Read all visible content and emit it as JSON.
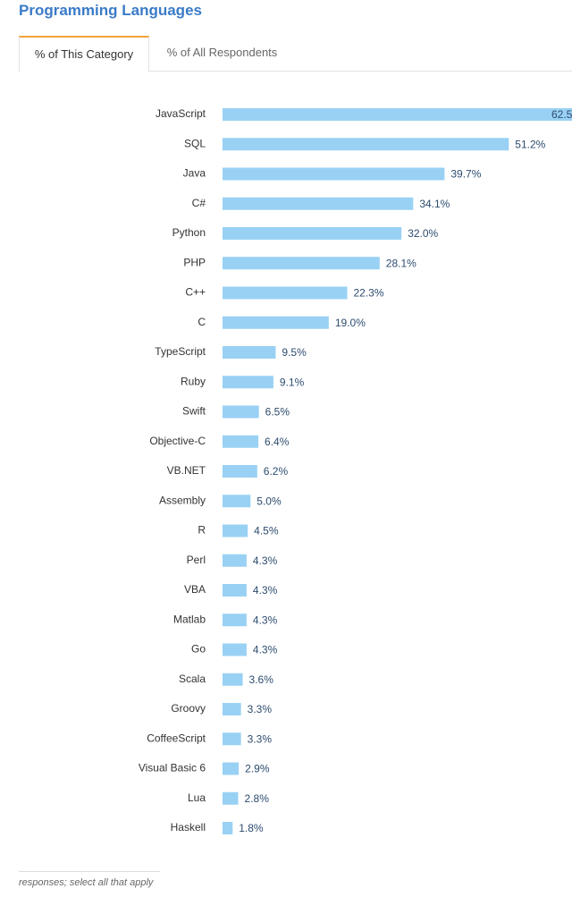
{
  "header": {
    "title": "Programming Languages"
  },
  "tabs": [
    {
      "label": "% of This Category",
      "active": true
    },
    {
      "label": "% of All Respondents",
      "active": false
    }
  ],
  "footer": {
    "note": "responses; select all that apply"
  },
  "colors": {
    "bar": "#99d1f4",
    "title": "#3a7bc8",
    "active_tab_accent": "#f2a33a"
  },
  "chart_data": {
    "type": "bar",
    "orientation": "horizontal",
    "categories": [
      "JavaScript",
      "SQL",
      "Java",
      "C#",
      "Python",
      "PHP",
      "C++",
      "C",
      "TypeScript",
      "Ruby",
      "Swift",
      "Objective-C",
      "VB.NET",
      "Assembly",
      "R",
      "Perl",
      "VBA",
      "Matlab",
      "Go",
      "Scala",
      "Groovy",
      "CoffeeScript",
      "Visual Basic 6",
      "Lua",
      "Haskell"
    ],
    "values": [
      62.5,
      51.2,
      39.7,
      34.1,
      32.0,
      28.1,
      22.3,
      19.0,
      9.5,
      9.1,
      6.5,
      6.4,
      6.2,
      5.0,
      4.5,
      4.3,
      4.3,
      4.3,
      4.3,
      3.6,
      3.3,
      3.3,
      2.9,
      2.8,
      1.8
    ],
    "value_labels": [
      "62.5%",
      "51.2%",
      "39.7%",
      "34.1%",
      "32.0%",
      "28.1%",
      "22.3%",
      "19.0%",
      "9.5%",
      "9.1%",
      "6.5%",
      "6.4%",
      "6.2%",
      "5.0%",
      "4.5%",
      "4.3%",
      "4.3%",
      "4.3%",
      "4.3%",
      "3.6%",
      "3.3%",
      "3.3%",
      "2.9%",
      "2.8%",
      "1.8%"
    ],
    "title": "Programming Languages",
    "xlabel": "",
    "ylabel": "",
    "xlim": [
      0,
      62.5
    ],
    "grid": false,
    "legend": "none"
  }
}
